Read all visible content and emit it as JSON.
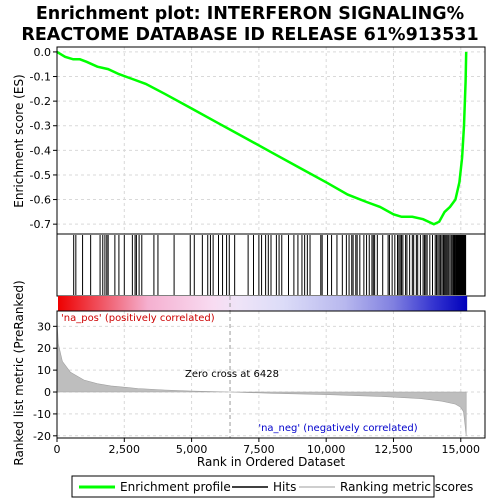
{
  "chart_data": {
    "type": "line",
    "title_line1": "Enrichment plot: INTERFERON SIGNALING%",
    "title_line2": "REACTOME DATABASE ID RELEASE 61%913531",
    "ylabel_top": "Enrichment score (ES)",
    "ylabel_bottom": "Ranked list metric (PreRanked)",
    "xlabel": "Rank in Ordered Dataset",
    "xlim": [
      0,
      15900
    ],
    "x_ticks": [
      0,
      2500,
      5000,
      7500,
      10000,
      12500,
      15000
    ],
    "x_tick_labels": [
      "0",
      "2,500",
      "5,000",
      "7,500",
      "10,000",
      "12,500",
      "15,000"
    ],
    "es_ylim": [
      -0.74,
      0.02
    ],
    "es_ticks": [
      0.0,
      -0.1,
      -0.2,
      -0.3,
      -0.4,
      -0.5,
      -0.6,
      -0.7
    ],
    "es_tick_labels": [
      "0.0",
      "-0.1",
      "-0.2",
      "-0.3",
      "-0.4",
      "-0.5",
      "-0.6",
      "-0.7"
    ],
    "metric_ylim": [
      -21,
      37
    ],
    "metric_ticks": [
      30,
      20,
      10,
      0,
      -10,
      -20
    ],
    "metric_tick_labels": [
      "30",
      "20",
      "10",
      "0",
      "-10",
      "-20"
    ],
    "enrichment_profile": {
      "x": [
        0,
        300,
        600,
        850,
        1100,
        1500,
        1900,
        2300,
        2800,
        3300,
        4000,
        5000,
        6000,
        7000,
        8000,
        9000,
        10000,
        10800,
        11500,
        12000,
        12500,
        12800,
        13200,
        13600,
        14000,
        14200,
        14400,
        14600,
        14800,
        14950,
        15050,
        15120,
        15180,
        15200
      ],
      "y": [
        0.0,
        -0.02,
        -0.03,
        -0.03,
        -0.04,
        -0.06,
        -0.07,
        -0.09,
        -0.11,
        -0.13,
        -0.17,
        -0.23,
        -0.29,
        -0.35,
        -0.41,
        -0.47,
        -0.53,
        -0.58,
        -0.61,
        -0.63,
        -0.66,
        -0.67,
        -0.67,
        -0.68,
        -0.7,
        -0.69,
        -0.65,
        -0.63,
        -0.6,
        -0.53,
        -0.43,
        -0.3,
        -0.12,
        0.0
      ]
    },
    "zero_cross_label": "Zero cross at 6428",
    "zero_cross": 6428,
    "pos_label": "'na_pos' (positively correlated)",
    "neg_label": "'na_neg' (negatively correlated)",
    "n_genes": 15200,
    "metric_curve": {
      "x": [
        0,
        50,
        200,
        500,
        1000,
        1500,
        2000,
        3000,
        4000,
        5000,
        6428,
        8000,
        10000,
        12000,
        13500,
        14300,
        14800,
        15000,
        15100,
        15150,
        15200
      ],
      "y": [
        33,
        22,
        14,
        9,
        5.5,
        3.8,
        2.8,
        1.6,
        0.9,
        0.4,
        0,
        -0.6,
        -1.2,
        -2.0,
        -3.0,
        -4.2,
        -5.5,
        -7,
        -9,
        -14,
        -20
      ]
    },
    "hits": [
      620,
      700,
      950,
      1250,
      1600,
      1700,
      1780,
      1850,
      1900,
      2150,
      2300,
      2500,
      2800,
      2900,
      2950,
      3050,
      3150,
      3600,
      3750,
      4350,
      4950,
      5100,
      5400,
      5600,
      5700,
      5800,
      6000,
      6150,
      6300,
      6400,
      6600,
      7100,
      7300,
      7500,
      7600,
      7750,
      7850,
      7950,
      8150,
      8250,
      8350,
      8600,
      8800,
      8950,
      9100,
      9200,
      9300,
      9400,
      9800,
      9850,
      10050,
      10200,
      10400,
      10600,
      10750,
      10850,
      10950,
      11000,
      11100,
      11150,
      11250,
      11400,
      11500,
      11600,
      11700,
      11750,
      11800,
      11900,
      12100,
      12300,
      12350,
      12450,
      12550,
      12650,
      12700,
      12750,
      12800,
      12850,
      12950,
      13000,
      13100,
      13200,
      13250,
      13350,
      13400,
      13500,
      13600,
      13650,
      13700,
      13750,
      13850,
      13950,
      14050,
      14100,
      14150,
      14200,
      14250,
      14300,
      14350,
      14380,
      14420,
      14460,
      14500,
      14550,
      14600,
      14650,
      14700,
      14720,
      14750,
      14780,
      14800,
      14830,
      14860,
      14880,
      14900,
      14920,
      14940,
      14960,
      14980,
      15000,
      15020,
      15040,
      15060,
      15080,
      15100,
      15120,
      15140,
      15160,
      15180
    ]
  },
  "legend": {
    "profile_label": "Enrichment profile",
    "hits_label": "Hits",
    "metric_label": "Ranking metric scores"
  },
  "colors": {
    "profile": "#00ff00",
    "hits": "#000000",
    "metric_fill": "#bebebe",
    "pos_text": "#cc0000",
    "neg_text": "#0000cc",
    "grid": "#d9d9d9"
  }
}
